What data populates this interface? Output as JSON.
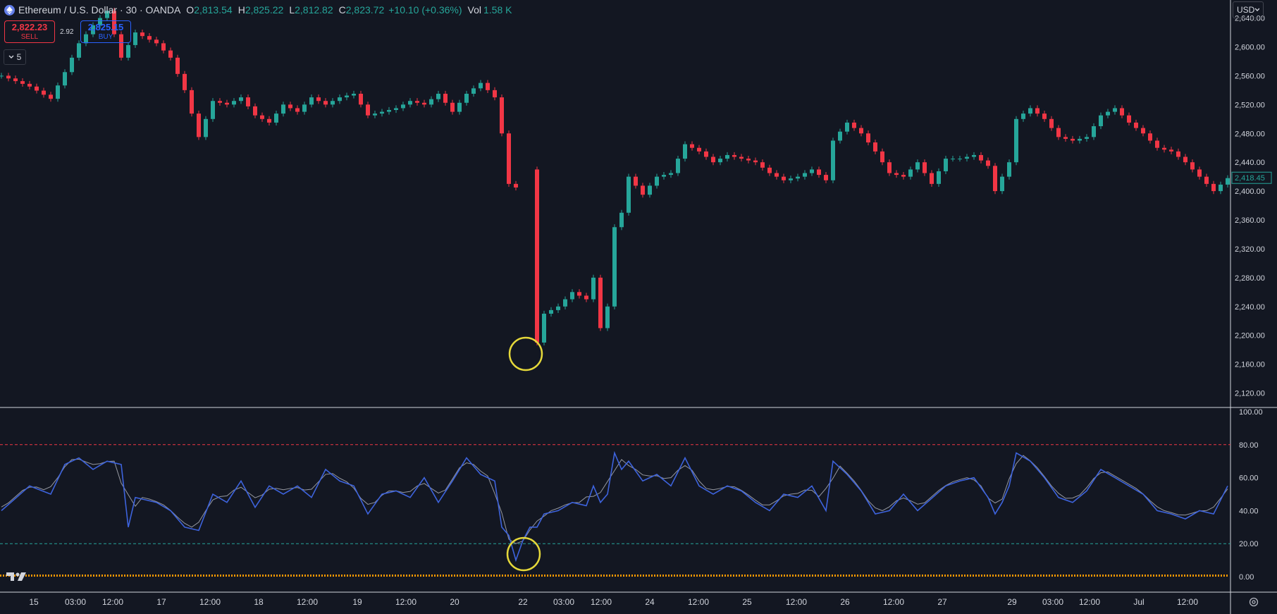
{
  "header": {
    "symbol": "Ethereum / U.S. Dollar · 30 · OANDA",
    "open_key": "O",
    "open": "2,813.54",
    "high_key": "H",
    "high": "2,825.22",
    "low_key": "L",
    "low": "2,812.82",
    "close_key": "C",
    "close": "2,823.72",
    "change": "+10.10 (+0.36%)",
    "vol_key": "Vol",
    "vol": "1.58 K"
  },
  "trade": {
    "sell_price": "2,822.23",
    "sell_label": "SELL",
    "buy_price": "2,825.15",
    "buy_label": "BUY",
    "spread": "2.92"
  },
  "collapse_label": "5",
  "currency": "USD",
  "colors": {
    "up": "#26a69a",
    "down": "#f23645",
    "rsi": "#3d63dd",
    "rsi_ma": "#9598a1",
    "band_top": "#f23645",
    "band_bottom": "#26a69a",
    "volume": "#ff9800",
    "highlight": "#e5d83a"
  },
  "chart_data": [
    {
      "type": "candlestick",
      "interval": "30",
      "last_price": "2,418.45",
      "y_ticks": [
        "2,640.00",
        "2,600.00",
        "2,560.00",
        "2,520.00",
        "2,480.00",
        "2,440.00",
        "2,400.00",
        "2,360.00",
        "2,320.00",
        "2,280.00",
        "2,240.00",
        "2,200.00",
        "2,160.00",
        "2,120.00"
      ],
      "ylim": [
        2100,
        2665
      ],
      "x_ticks": [
        "15",
        "03:00",
        "12:00",
        "17",
        "12:00",
        "18",
        "12:00",
        "19",
        "12:00",
        "20",
        "22",
        "03:00",
        "12:00",
        "24",
        "12:00",
        "25",
        "12:00",
        "26",
        "12:00",
        "27",
        "29",
        "03:00",
        "12:00",
        "Jul",
        "12:00"
      ],
      "close_path": [
        [
          0,
          2560
        ],
        [
          4,
          2545
        ],
        [
          7,
          2528
        ],
        [
          9,
          2565
        ],
        [
          11,
          2605
        ],
        [
          13,
          2630
        ],
        [
          15,
          2650
        ],
        [
          17,
          2585
        ],
        [
          19,
          2620
        ],
        [
          22,
          2605
        ],
        [
          24,
          2585
        ],
        [
          26,
          2540
        ],
        [
          28,
          2475
        ],
        [
          30,
          2525
        ],
        [
          32,
          2520
        ],
        [
          34,
          2530
        ],
        [
          36,
          2505
        ],
        [
          38,
          2495
        ],
        [
          40,
          2520
        ],
        [
          42,
          2510
        ],
        [
          44,
          2530
        ],
        [
          46,
          2520
        ],
        [
          48,
          2530
        ],
        [
          50,
          2535
        ],
        [
          52,
          2505
        ],
        [
          54,
          2510
        ],
        [
          56,
          2515
        ],
        [
          58,
          2525
        ],
        [
          60,
          2520
        ],
        [
          62,
          2535
        ],
        [
          64,
          2510
        ],
        [
          66,
          2535
        ],
        [
          68,
          2550
        ],
        [
          70,
          2530
        ],
        [
          71,
          2480
        ],
        [
          72,
          2410
        ],
        [
          73,
          2405
        ],
        [
          74,
          2420
        ],
        [
          75,
          2430
        ],
        [
          76,
          2190
        ],
        [
          77,
          2230
        ],
        [
          79,
          2240
        ],
        [
          81,
          2260
        ],
        [
          83,
          2250
        ],
        [
          84,
          2280
        ],
        [
          85,
          2210
        ],
        [
          86,
          2240
        ],
        [
          87,
          2350
        ],
        [
          88,
          2370
        ],
        [
          89,
          2420
        ],
        [
          91,
          2395
        ],
        [
          93,
          2420
        ],
        [
          95,
          2425
        ],
        [
          97,
          2465
        ],
        [
          99,
          2455
        ],
        [
          101,
          2440
        ],
        [
          103,
          2450
        ],
        [
          105,
          2445
        ],
        [
          107,
          2440
        ],
        [
          109,
          2425
        ],
        [
          111,
          2415
        ],
        [
          113,
          2420
        ],
        [
          115,
          2430
        ],
        [
          117,
          2415
        ],
        [
          118,
          2470
        ],
        [
          120,
          2495
        ],
        [
          122,
          2480
        ],
        [
          124,
          2455
        ],
        [
          126,
          2425
        ],
        [
          128,
          2420
        ],
        [
          130,
          2440
        ],
        [
          132,
          2410
        ],
        [
          134,
          2445
        ],
        [
          136,
          2445
        ],
        [
          138,
          2450
        ],
        [
          140,
          2435
        ],
        [
          141,
          2400
        ],
        [
          142,
          2420
        ],
        [
          143,
          2440
        ],
        [
          144,
          2500
        ],
        [
          146,
          2515
        ],
        [
          148,
          2500
        ],
        [
          150,
          2475
        ],
        [
          152,
          2470
        ],
        [
          154,
          2475
        ],
        [
          156,
          2505
        ],
        [
          158,
          2515
        ],
        [
          160,
          2495
        ],
        [
          162,
          2480
        ],
        [
          164,
          2460
        ],
        [
          166,
          2455
        ],
        [
          168,
          2440
        ],
        [
          170,
          2420
        ],
        [
          172,
          2400
        ],
        [
          174,
          2418
        ]
      ],
      "annotation": "circle at local low ~2,180"
    },
    {
      "type": "line",
      "name": "RSI",
      "y_ticks": [
        "100.00",
        "80.00",
        "60.00",
        "40.00",
        "20.00",
        "0.00"
      ],
      "ylim": [
        0,
        100
      ],
      "bands": [
        80,
        20
      ],
      "rsi_path": [
        [
          0,
          40
        ],
        [
          4,
          55
        ],
        [
          7,
          50
        ],
        [
          9,
          68
        ],
        [
          11,
          72
        ],
        [
          13,
          65
        ],
        [
          15,
          70
        ],
        [
          17,
          68
        ],
        [
          18,
          30
        ],
        [
          19,
          48
        ],
        [
          22,
          45
        ],
        [
          24,
          40
        ],
        [
          26,
          30
        ],
        [
          28,
          28
        ],
        [
          30,
          50
        ],
        [
          32,
          45
        ],
        [
          34,
          58
        ],
        [
          36,
          42
        ],
        [
          38,
          55
        ],
        [
          40,
          50
        ],
        [
          42,
          55
        ],
        [
          44,
          48
        ],
        [
          46,
          65
        ],
        [
          48,
          58
        ],
        [
          50,
          55
        ],
        [
          52,
          38
        ],
        [
          54,
          50
        ],
        [
          56,
          52
        ],
        [
          58,
          48
        ],
        [
          60,
          60
        ],
        [
          62,
          45
        ],
        [
          64,
          58
        ],
        [
          66,
          72
        ],
        [
          68,
          62
        ],
        [
          70,
          58
        ],
        [
          71,
          30
        ],
        [
          72,
          25
        ],
        [
          73,
          10
        ],
        [
          74,
          22
        ],
        [
          75,
          30
        ],
        [
          76,
          30
        ],
        [
          77,
          38
        ],
        [
          79,
          40
        ],
        [
          81,
          45
        ],
        [
          83,
          43
        ],
        [
          84,
          55
        ],
        [
          85,
          45
        ],
        [
          86,
          50
        ],
        [
          87,
          75
        ],
        [
          88,
          65
        ],
        [
          89,
          70
        ],
        [
          91,
          58
        ],
        [
          93,
          62
        ],
        [
          95,
          55
        ],
        [
          97,
          72
        ],
        [
          99,
          55
        ],
        [
          101,
          50
        ],
        [
          103,
          55
        ],
        [
          105,
          52
        ],
        [
          107,
          45
        ],
        [
          109,
          40
        ],
        [
          111,
          50
        ],
        [
          113,
          48
        ],
        [
          115,
          55
        ],
        [
          117,
          40
        ],
        [
          118,
          70
        ],
        [
          120,
          62
        ],
        [
          122,
          52
        ],
        [
          124,
          38
        ],
        [
          126,
          40
        ],
        [
          128,
          50
        ],
        [
          130,
          40
        ],
        [
          134,
          55
        ],
        [
          136,
          58
        ],
        [
          138,
          60
        ],
        [
          140,
          48
        ],
        [
          141,
          38
        ],
        [
          142,
          45
        ],
        [
          143,
          55
        ],
        [
          144,
          75
        ],
        [
          146,
          70
        ],
        [
          148,
          60
        ],
        [
          150,
          48
        ],
        [
          152,
          45
        ],
        [
          154,
          52
        ],
        [
          156,
          65
        ],
        [
          158,
          60
        ],
        [
          160,
          55
        ],
        [
          162,
          50
        ],
        [
          164,
          40
        ],
        [
          166,
          38
        ],
        [
          168,
          35
        ],
        [
          170,
          40
        ],
        [
          172,
          38
        ],
        [
          174,
          55
        ]
      ],
      "annotation": "circle at RSI low below 20"
    }
  ]
}
